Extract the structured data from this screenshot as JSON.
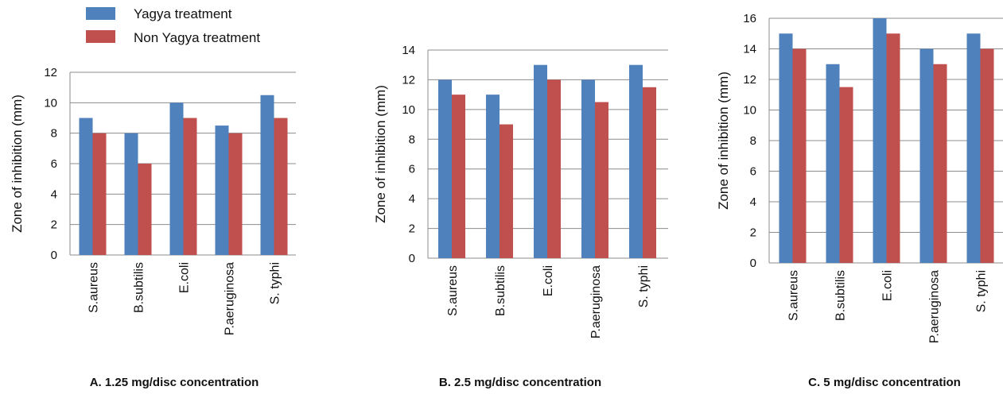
{
  "legend": {
    "items": [
      {
        "label": "Yagya treatment",
        "color": "#4F81BD"
      },
      {
        "label": "Non Yagya treatment",
        "color": "#C0504D"
      }
    ]
  },
  "chart_data": [
    {
      "type": "bar",
      "caption": "A. 1.25 mg/disc concentration",
      "ylabel": "Zone of inhibition (mm)",
      "ylim": [
        0,
        12
      ],
      "yticks": [
        0,
        2,
        4,
        6,
        8,
        10,
        12
      ],
      "yticklabels": [
        "0",
        "2",
        "4",
        "6",
        "8",
        "10",
        "12"
      ],
      "grid": true,
      "categories": [
        "S.aureus",
        "B.subtilis",
        "E.coli",
        "P.aeruginosa",
        "S.  typhi"
      ],
      "series": [
        {
          "name": "Yagya treatment",
          "values": [
            9,
            8,
            10,
            8.5,
            10.5
          ]
        },
        {
          "name": "Non Yagya treatment",
          "values": [
            8,
            6,
            9,
            8,
            9
          ]
        }
      ]
    },
    {
      "type": "bar",
      "caption": "B. 2.5 mg/disc concentration",
      "ylabel": "Zone of inhibition (mm)",
      "ylim": [
        0,
        14
      ],
      "yticks": [
        0,
        2,
        4,
        6,
        8,
        10,
        12,
        14
      ],
      "yticklabels": [
        "0",
        "2",
        "4",
        "6",
        "8",
        "10",
        "12",
        "14"
      ],
      "grid": true,
      "categories": [
        "S.aureus",
        "B.subtilis",
        "E.coli",
        "P.aeruginosa",
        "S.  typhi"
      ],
      "series": [
        {
          "name": "Yagya treatment",
          "values": [
            12,
            11,
            13,
            12,
            13
          ]
        },
        {
          "name": "Non Yagya treatment",
          "values": [
            11,
            9,
            12,
            10.5,
            11.5
          ]
        }
      ]
    },
    {
      "type": "bar",
      "caption": "C. 5 mg/disc concentration",
      "ylabel": "Zone of inhibition (mm)",
      "ylim": [
        0,
        16
      ],
      "yticks": [
        0,
        2,
        4,
        6,
        8,
        10,
        12,
        14,
        16
      ],
      "yticklabels": [
        "0",
        "2",
        "4",
        "6",
        "8",
        "10",
        "12",
        "14",
        "16"
      ],
      "grid": true,
      "categories": [
        "S.aureus",
        "B.subtilis",
        "E.coli",
        "P.aeruginosa",
        "S.  typhi"
      ],
      "series": [
        {
          "name": "Yagya treatment",
          "values": [
            15,
            13,
            16,
            14,
            15
          ]
        },
        {
          "name": "Non Yagya treatment",
          "values": [
            14,
            11.5,
            15,
            13,
            14
          ]
        }
      ]
    }
  ]
}
